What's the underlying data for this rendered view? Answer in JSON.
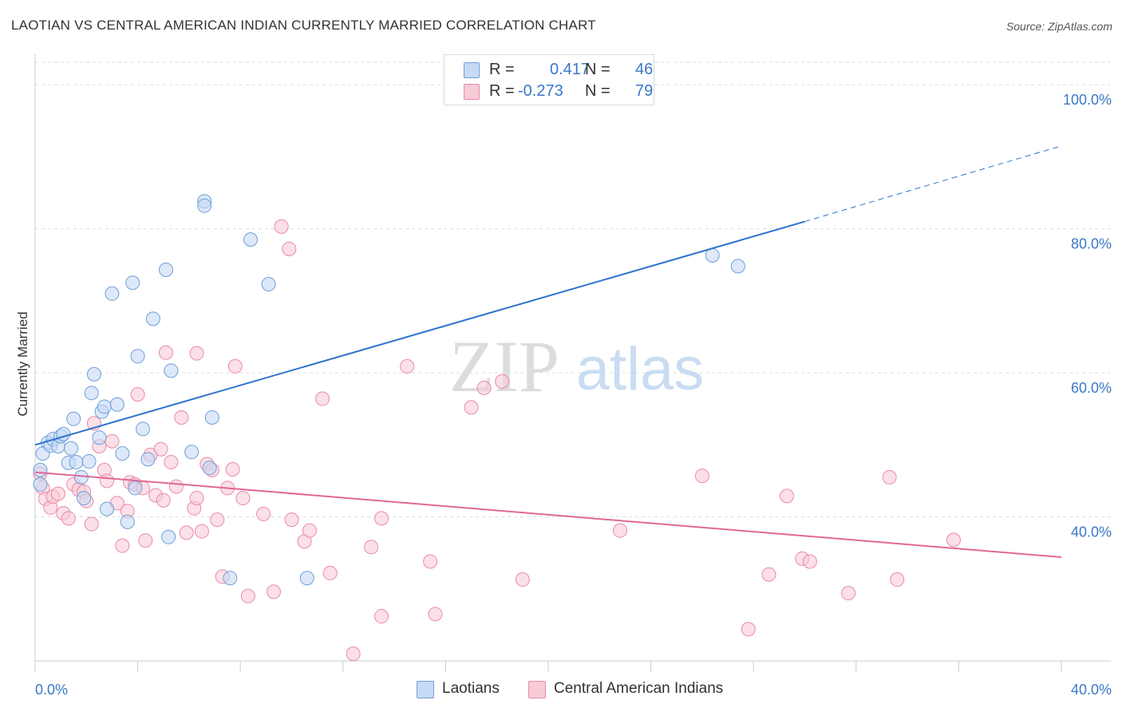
{
  "title": "LAOTIAN VS CENTRAL AMERICAN INDIAN CURRENTLY MARRIED CORRELATION CHART",
  "source": "Source: ZipAtlas.com",
  "watermark": {
    "zip": "ZIP",
    "atlas": "atlas"
  },
  "legend": {
    "r_label": "R =",
    "n_label": "N =",
    "laotians": {
      "r": "0.417",
      "n": "46"
    },
    "central": {
      "r": "-0.273",
      "n": "79"
    }
  },
  "colors": {
    "laotians_fill": "#c6d9f5",
    "laotians_stroke": "#6f9fd8",
    "laotians_line": "#2e73cc",
    "central_fill": "#f8cbd7",
    "central_stroke": "#e98aa8",
    "central_line": "#e0689a",
    "tick_label": "#3a78c9",
    "grid": "#dddddd"
  },
  "chart_data": {
    "type": "scatter",
    "title": "LAOTIAN VS CENTRAL AMERICAN INDIAN CURRENTLY MARRIED CORRELATION CHART",
    "xlabel": "",
    "ylabel": "Currently Married",
    "xlim": [
      0,
      40
    ],
    "ylim": [
      20,
      104
    ],
    "x_tick_labels": [
      "0.0%",
      "40.0%"
    ],
    "y_ticks": [
      40,
      60,
      80,
      100
    ],
    "y_tick_labels": [
      "40.0%",
      "60.0%",
      "80.0%",
      "100.0%"
    ],
    "grid": true,
    "legend_position": "top-center",
    "series": [
      {
        "name": "Laotians",
        "r": 0.417,
        "n": 46,
        "trend": {
          "x0": 0,
          "y0": 50.0,
          "x1": 30,
          "y1": 81.0,
          "dash_to_x": 40,
          "dash_to_y": 91.5
        },
        "points": [
          [
            0.3,
            48.8
          ],
          [
            0.5,
            50.3
          ],
          [
            0.6,
            49.9
          ],
          [
            0.7,
            50.8
          ],
          [
            0.9,
            49.8
          ],
          [
            1.0,
            51.2
          ],
          [
            1.1,
            51.5
          ],
          [
            1.3,
            47.5
          ],
          [
            1.4,
            49.5
          ],
          [
            1.5,
            53.6
          ],
          [
            1.6,
            47.6
          ],
          [
            1.8,
            45.5
          ],
          [
            1.9,
            42.6
          ],
          [
            2.1,
            47.7
          ],
          [
            2.2,
            57.2
          ],
          [
            2.3,
            59.8
          ],
          [
            2.5,
            51.0
          ],
          [
            2.6,
            54.6
          ],
          [
            2.7,
            55.3
          ],
          [
            2.8,
            41.1
          ],
          [
            3.0,
            71.0
          ],
          [
            3.2,
            55.6
          ],
          [
            3.4,
            48.8
          ],
          [
            3.6,
            39.3
          ],
          [
            3.8,
            72.5
          ],
          [
            3.9,
            44.0
          ],
          [
            4.0,
            62.3
          ],
          [
            4.2,
            52.2
          ],
          [
            4.4,
            48.0
          ],
          [
            4.6,
            67.5
          ],
          [
            5.1,
            74.3
          ],
          [
            5.2,
            37.2
          ],
          [
            5.3,
            60.3
          ],
          [
            6.1,
            49.0
          ],
          [
            6.6,
            83.8
          ],
          [
            6.6,
            83.2
          ],
          [
            6.8,
            46.8
          ],
          [
            6.9,
            53.8
          ],
          [
            7.6,
            31.5
          ],
          [
            8.4,
            78.5
          ],
          [
            9.1,
            72.3
          ],
          [
            10.6,
            31.5
          ],
          [
            26.4,
            76.3
          ],
          [
            27.4,
            74.8
          ],
          [
            0.2,
            46.5
          ],
          [
            0.2,
            44.5
          ]
        ]
      },
      {
        "name": "Central American Indians",
        "r": -0.273,
        "n": 79,
        "trend": {
          "x0": 0,
          "y0": 46.2,
          "x1": 40,
          "y1": 34.4
        },
        "points": [
          [
            0.2,
            46.0
          ],
          [
            0.3,
            44.0
          ],
          [
            0.4,
            42.5
          ],
          [
            0.6,
            41.3
          ],
          [
            0.7,
            42.8
          ],
          [
            0.9,
            43.2
          ],
          [
            1.1,
            40.5
          ],
          [
            1.3,
            39.8
          ],
          [
            1.5,
            44.5
          ],
          [
            1.7,
            43.8
          ],
          [
            1.9,
            43.5
          ],
          [
            2.0,
            42.2
          ],
          [
            2.2,
            39.0
          ],
          [
            2.3,
            53.0
          ],
          [
            2.5,
            49.8
          ],
          [
            2.7,
            46.5
          ],
          [
            2.8,
            45.0
          ],
          [
            3.0,
            50.5
          ],
          [
            3.2,
            41.9
          ],
          [
            3.4,
            36.0
          ],
          [
            3.6,
            40.8
          ],
          [
            3.7,
            44.8
          ],
          [
            3.9,
            44.5
          ],
          [
            4.0,
            57.0
          ],
          [
            4.2,
            44.0
          ],
          [
            4.3,
            36.7
          ],
          [
            4.5,
            48.6
          ],
          [
            4.7,
            43.0
          ],
          [
            4.9,
            49.4
          ],
          [
            5.0,
            42.3
          ],
          [
            5.1,
            62.8
          ],
          [
            5.3,
            47.6
          ],
          [
            5.5,
            44.2
          ],
          [
            5.7,
            53.8
          ],
          [
            5.9,
            37.8
          ],
          [
            6.2,
            41.2
          ],
          [
            6.3,
            42.6
          ],
          [
            6.3,
            62.7
          ],
          [
            6.5,
            38.0
          ],
          [
            6.7,
            47.3
          ],
          [
            6.9,
            46.5
          ],
          [
            7.1,
            39.6
          ],
          [
            7.3,
            31.7
          ],
          [
            7.5,
            44.0
          ],
          [
            7.7,
            46.6
          ],
          [
            7.8,
            60.9
          ],
          [
            8.1,
            42.6
          ],
          [
            8.3,
            29.0
          ],
          [
            8.9,
            40.4
          ],
          [
            9.3,
            29.6
          ],
          [
            9.6,
            80.3
          ],
          [
            9.9,
            77.2
          ],
          [
            10.0,
            39.6
          ],
          [
            10.5,
            36.6
          ],
          [
            10.7,
            38.1
          ],
          [
            11.2,
            56.4
          ],
          [
            11.5,
            32.2
          ],
          [
            12.4,
            21.0
          ],
          [
            13.1,
            35.8
          ],
          [
            13.5,
            26.2
          ],
          [
            13.5,
            39.8
          ],
          [
            14.5,
            60.9
          ],
          [
            15.4,
            33.8
          ],
          [
            15.6,
            26.5
          ],
          [
            17.0,
            55.2
          ],
          [
            17.5,
            57.9
          ],
          [
            18.2,
            58.8
          ],
          [
            19.0,
            31.3
          ],
          [
            22.8,
            38.1
          ],
          [
            26.0,
            45.7
          ],
          [
            27.8,
            24.4
          ],
          [
            28.6,
            32.0
          ],
          [
            29.3,
            42.9
          ],
          [
            29.9,
            34.2
          ],
          [
            30.2,
            33.8
          ],
          [
            31.7,
            29.4
          ],
          [
            33.3,
            45.5
          ],
          [
            33.6,
            31.3
          ],
          [
            35.8,
            36.8
          ]
        ]
      }
    ]
  }
}
